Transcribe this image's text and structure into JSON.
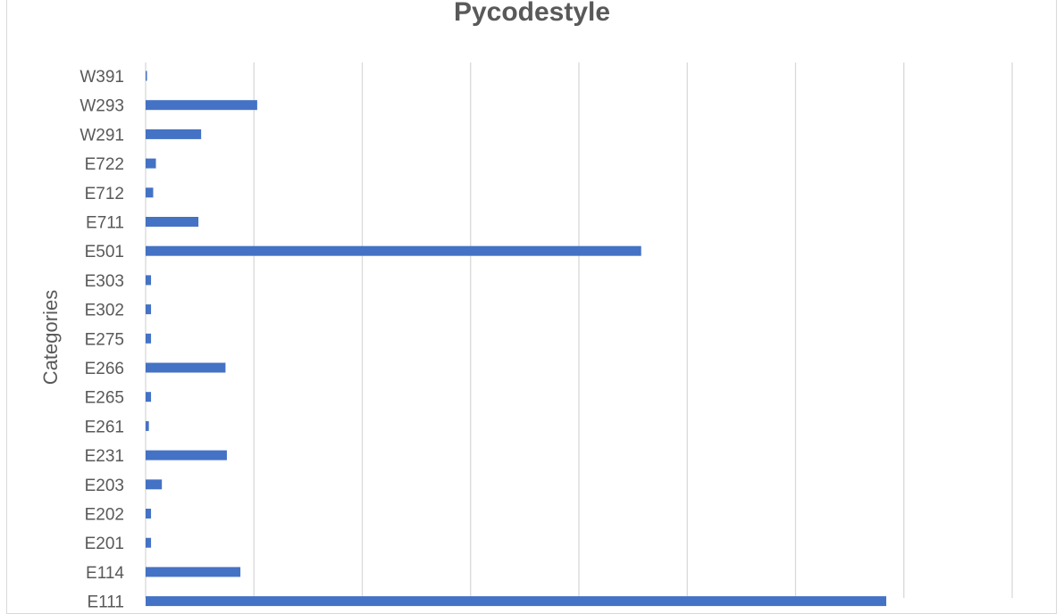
{
  "chart_data": {
    "type": "bar",
    "orientation": "horizontal",
    "title": "Pycodestyle",
    "xlabel": "",
    "ylabel": "Categories",
    "categories": [
      "E111",
      "E114",
      "E201",
      "E202",
      "E203",
      "E231",
      "E261",
      "E265",
      "E266",
      "E275",
      "E302",
      "E303",
      "E501",
      "E711",
      "E712",
      "E722",
      "W291",
      "W293",
      "W391"
    ],
    "values": [
      2735,
      350,
      20,
      20,
      60,
      300,
      12,
      20,
      295,
      20,
      20,
      20,
      1830,
      195,
      28,
      38,
      205,
      412,
      5
    ],
    "xlim": [
      0,
      3200
    ],
    "x_gridline_step": 400,
    "x_tick_labels_visible": false,
    "grid": true,
    "legend": "none",
    "bar_color": "#4472c4",
    "grid_color": "#d9d9d9",
    "text_color": "#595959"
  }
}
